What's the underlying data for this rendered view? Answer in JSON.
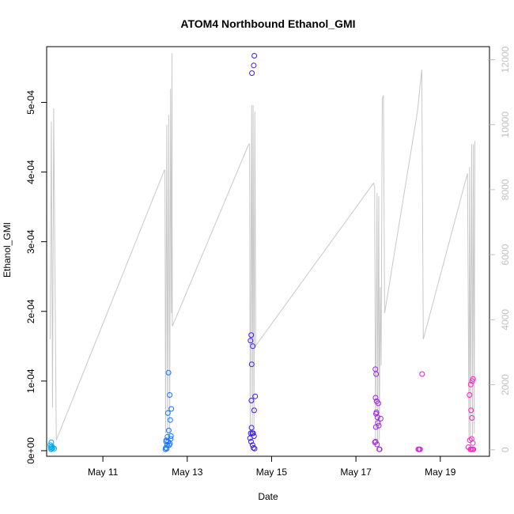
{
  "chart_data": {
    "type": "scatter",
    "title": "ATOM4 Northbound Ethanol_GMI",
    "xlabel": "Date",
    "ylabel": "Ethanol_GMI",
    "xlim": [
      "2016-05-09T16:00",
      "2016-05-20T04:00"
    ],
    "ylim": [
      -8e-06,
      0.00058
    ],
    "ylim_right": [
      -200,
      12400
    ],
    "x_ticks": [
      {
        "date": "2016-05-11",
        "label": "May 11"
      },
      {
        "date": "2016-05-13",
        "label": "May 13"
      },
      {
        "date": "2016-05-15",
        "label": "May 15"
      },
      {
        "date": "2016-05-17",
        "label": "May 17"
      },
      {
        "date": "2016-05-19",
        "label": "May 19"
      }
    ],
    "y_ticks": [
      {
        "value": 0,
        "label": "0e+00"
      },
      {
        "value": 0.0001,
        "label": "1e-04"
      },
      {
        "value": 0.0002,
        "label": "2e-04"
      },
      {
        "value": 0.0003,
        "label": "3e-04"
      },
      {
        "value": 0.0004,
        "label": "4e-04"
      },
      {
        "value": 0.0005,
        "label": "5e-04"
      }
    ],
    "y_right_ticks": [
      {
        "value": 0,
        "label": "0"
      },
      {
        "value": 2000,
        "label": "2000"
      },
      {
        "value": 4000,
        "label": "4000"
      },
      {
        "value": 6000,
        "label": "6000"
      },
      {
        "value": 8000,
        "label": "8000"
      },
      {
        "value": 10000,
        "label": "10000"
      },
      {
        "value": 12000,
        "label": "12000"
      }
    ],
    "grid": false,
    "series": [
      {
        "kind": "points",
        "axis": "left",
        "color": "#00a8ff",
        "points": [
          [
            "2016-05-09T18:10",
            8e-06
          ],
          [
            "2016-05-09T18:20",
            5e-06
          ],
          [
            "2016-05-09T18:30",
            2e-06
          ],
          [
            "2016-05-09T18:40",
            1.2e-05
          ],
          [
            "2016-05-09T18:50",
            3e-06
          ],
          [
            "2016-05-09T19:00",
            6e-06
          ],
          [
            "2016-05-09T19:30",
            4e-06
          ],
          [
            "2016-05-09T20:20",
            3e-06
          ]
        ]
      },
      {
        "kind": "points",
        "axis": "left",
        "color": "#1874ff",
        "points": [
          [
            "2016-05-12T11:35",
            2e-06
          ],
          [
            "2016-05-12T11:45",
            4e-06
          ],
          [
            "2016-05-12T12:00",
            1.3e-05
          ],
          [
            "2016-05-12T12:05",
            1.5e-05
          ],
          [
            "2016-05-12T12:20",
            3e-06
          ],
          [
            "2016-05-12T12:35",
            8e-06
          ],
          [
            "2016-05-12T12:45",
            2e-05
          ],
          [
            "2016-05-12T13:00",
            5.4e-05
          ],
          [
            "2016-05-12T13:10",
            1.3e-05
          ],
          [
            "2016-05-12T13:20",
            0.000112
          ],
          [
            "2016-05-12T13:30",
            2.9e-05
          ],
          [
            "2016-05-12T13:45",
            8e-06
          ],
          [
            "2016-05-12T14:00",
            8e-05
          ],
          [
            "2016-05-12T14:10",
            1e-05
          ],
          [
            "2016-05-12T14:20",
            4.4e-05
          ],
          [
            "2016-05-12T14:35",
            1.7e-05
          ],
          [
            "2016-05-12T14:45",
            2.1e-05
          ],
          [
            "2016-05-12T14:55",
            6e-05
          ]
        ]
      },
      {
        "kind": "points",
        "axis": "left",
        "color": "#3a1aff",
        "points": [
          [
            "2016-05-14T11:45",
            1.8e-05
          ],
          [
            "2016-05-14T12:00",
            0.000158
          ],
          [
            "2016-05-14T12:10",
            2.5e-05
          ],
          [
            "2016-05-14T12:20",
            1.3e-05
          ],
          [
            "2016-05-14T12:25",
            0.000166
          ],
          [
            "2016-05-14T12:30",
            7.2e-05
          ],
          [
            "2016-05-14T12:35",
            3.3e-05
          ],
          [
            "2016-05-14T12:40",
            0.000124
          ],
          [
            "2016-05-14T12:50",
            0.000542
          ],
          [
            "2016-05-14T13:00",
            2.5e-05
          ],
          [
            "2016-05-14T13:10",
            8e-06
          ],
          [
            "2016-05-14T13:20",
            0.00015
          ],
          [
            "2016-05-14T13:30",
            2.5e-05
          ],
          [
            "2016-05-14T13:40",
            4e-06
          ],
          [
            "2016-05-14T13:50",
            0.000553
          ],
          [
            "2016-05-14T14:00",
            2.1e-05
          ],
          [
            "2016-05-14T14:05",
            5.8e-05
          ],
          [
            "2016-05-14T14:10",
            0.000567
          ],
          [
            "2016-05-14T14:20",
            3e-06
          ],
          [
            "2016-05-14T14:40",
            7.8e-05
          ]
        ]
      },
      {
        "kind": "points",
        "axis": "left",
        "color": "#a223e8",
        "points": [
          [
            "2016-05-17T10:45",
            1.2e-05
          ],
          [
            "2016-05-17T11:05",
            0.000117
          ],
          [
            "2016-05-17T11:10",
            7.6e-05
          ],
          [
            "2016-05-17T11:15",
            1.3e-05
          ],
          [
            "2016-05-17T11:20",
            3.4e-05
          ],
          [
            "2016-05-17T11:25",
            5.3e-05
          ],
          [
            "2016-05-17T11:30",
            0.00011
          ],
          [
            "2016-05-17T11:40",
            5.5e-05
          ],
          [
            "2016-05-17T11:50",
            7.1e-05
          ],
          [
            "2016-05-17T12:00",
            9e-06
          ],
          [
            "2016-05-17T12:15",
            4.8e-05
          ],
          [
            "2016-05-17T12:30",
            4e-05
          ],
          [
            "2016-05-17T12:45",
            6.8e-05
          ],
          [
            "2016-05-17T13:00",
            3.6e-05
          ],
          [
            "2016-05-17T13:15",
            2e-06
          ],
          [
            "2016-05-17T13:30",
            2e-06
          ],
          [
            "2016-05-17T14:05",
            4.6e-05
          ]
        ]
      },
      {
        "kind": "points",
        "axis": "left",
        "color": "#d41ee0",
        "points": [
          [
            "2016-05-18T11:30",
            2e-06
          ],
          [
            "2016-05-18T12:00",
            2e-06
          ],
          [
            "2016-05-18T12:30",
            2e-06
          ],
          [
            "2016-05-18T13:40",
            0.00011
          ]
        ]
      },
      {
        "kind": "points",
        "axis": "left",
        "color": "#ff20c0",
        "points": [
          [
            "2016-05-19T16:00",
            5e-06
          ],
          [
            "2016-05-19T16:40",
            8e-05
          ],
          [
            "2016-05-19T16:50",
            1.5e-05
          ],
          [
            "2016-05-19T17:10",
            2e-06
          ],
          [
            "2016-05-19T17:20",
            9.5e-05
          ],
          [
            "2016-05-19T17:30",
            5.8e-05
          ],
          [
            "2016-05-19T17:40",
            2e-06
          ],
          [
            "2016-05-19T17:50",
            1.7e-05
          ],
          [
            "2016-05-19T18:00",
            4.7e-05
          ],
          [
            "2016-05-19T18:10",
            0.0001
          ],
          [
            "2016-05-19T18:20",
            2e-06
          ],
          [
            "2016-05-19T18:30",
            1.1e-05
          ],
          [
            "2016-05-19T18:40",
            0.000103
          ],
          [
            "2016-05-19T18:50",
            2e-06
          ]
        ]
      },
      {
        "kind": "line",
        "axis": "right",
        "color": "#c8c8c8",
        "points": [
          [
            "2016-05-09T18:00",
            3400
          ],
          [
            "2016-05-09T18:40",
            10100
          ],
          [
            "2016-05-09T19:20",
            1300
          ],
          [
            "2016-05-09T20:00",
            10500
          ],
          [
            "2016-05-09T21:30",
            300
          ],
          [
            "2016-05-12T11:00",
            8600
          ],
          [
            "2016-05-12T11:20",
            8600
          ],
          [
            "2016-05-12T11:40",
            500
          ],
          [
            "2016-05-12T12:20",
            10000
          ],
          [
            "2016-05-12T12:50",
            400
          ],
          [
            "2016-05-12T13:30",
            10300
          ],
          [
            "2016-05-12T14:00",
            500
          ],
          [
            "2016-05-12T14:30",
            11100
          ],
          [
            "2016-05-12T15:00",
            4200
          ],
          [
            "2016-05-12T15:20",
            12200
          ],
          [
            "2016-05-12T15:30",
            3800
          ],
          [
            "2016-05-14T11:00",
            9400
          ],
          [
            "2016-05-14T11:30",
            9400
          ],
          [
            "2016-05-14T11:50",
            300
          ],
          [
            "2016-05-14T12:40",
            10600
          ],
          [
            "2016-05-14T13:00",
            500
          ],
          [
            "2016-05-14T13:30",
            10600
          ],
          [
            "2016-05-14T14:00",
            600
          ],
          [
            "2016-05-14T14:30",
            10400
          ],
          [
            "2016-05-14T15:00",
            3200
          ],
          [
            "2016-05-17T10:00",
            8200
          ],
          [
            "2016-05-17T10:40",
            8100
          ],
          [
            "2016-05-17T11:10",
            300
          ],
          [
            "2016-05-17T12:00",
            7900
          ],
          [
            "2016-05-17T12:20",
            300
          ],
          [
            "2016-05-17T13:00",
            7800
          ],
          [
            "2016-05-17T13:20",
            300
          ],
          [
            "2016-05-17T13:50",
            5000
          ],
          [
            "2016-05-17T14:20",
            2600
          ],
          [
            "2016-05-17T15:00",
            10800
          ],
          [
            "2016-05-17T15:40",
            10900
          ],
          [
            "2016-05-17T16:20",
            4200
          ],
          [
            "2016-05-18T11:00",
            10400
          ],
          [
            "2016-05-18T13:30",
            11700
          ],
          [
            "2016-05-18T14:20",
            3400
          ],
          [
            "2016-05-19T15:30",
            8500
          ],
          [
            "2016-05-19T16:20",
            300
          ],
          [
            "2016-05-19T16:40",
            8700
          ],
          [
            "2016-05-19T17:10",
            300
          ],
          [
            "2016-05-19T17:50",
            9400
          ],
          [
            "2016-05-19T18:20",
            300
          ],
          [
            "2016-05-19T18:50",
            9400
          ],
          [
            "2016-05-19T19:20",
            500
          ],
          [
            "2016-05-19T19:40",
            9500
          ]
        ]
      }
    ]
  }
}
